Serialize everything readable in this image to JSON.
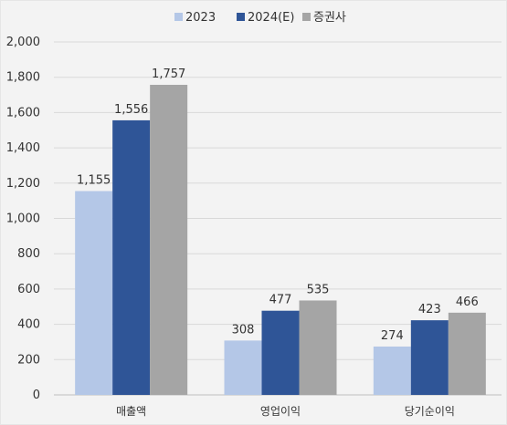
{
  "chart_data": {
    "type": "bar",
    "categories": [
      "매출액",
      "영업이익",
      "당기순이익"
    ],
    "series": [
      {
        "name": "2023",
        "values": [
          1155,
          308,
          274
        ],
        "color": "#b4c7e7"
      },
      {
        "name": "2024(E)",
        "values": [
          1556,
          477,
          423
        ],
        "color": "#2f5597"
      },
      {
        "name": "증권사",
        "values": [
          1757,
          535,
          466
        ],
        "color": "#a5a5a5"
      }
    ],
    "data_labels": [
      [
        "1,155",
        "308",
        "274"
      ],
      [
        "1,556",
        "477",
        "423"
      ],
      [
        "1,757",
        "535",
        "466"
      ]
    ],
    "y_ticks": [
      "0",
      "200",
      "400",
      "600",
      "800",
      "1,000",
      "1,200",
      "1,400",
      "1,600",
      "1,800",
      "2,000"
    ],
    "ylim": [
      0,
      2000
    ],
    "grid": true,
    "legend_position": "top-center"
  }
}
